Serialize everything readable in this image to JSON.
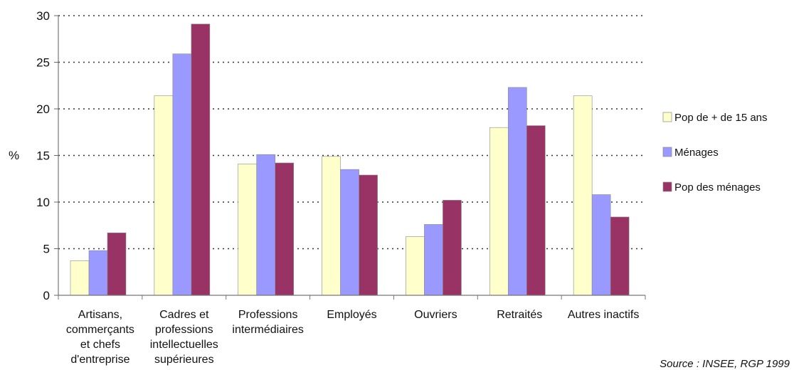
{
  "chart_data": {
    "type": "bar",
    "ylabel": "%",
    "ylim": [
      0,
      30
    ],
    "yticks": [
      0,
      5,
      10,
      15,
      20,
      25,
      30
    ],
    "grid": "horizontal dotted",
    "legend_position": "right",
    "categories": [
      [
        "Artisans,",
        "commerçants",
        "et chefs",
        "d'entreprise"
      ],
      [
        "Cadres et",
        "professions",
        "intellectuelles",
        "supérieures"
      ],
      [
        "Professions",
        "intermédiaires"
      ],
      [
        "Employés"
      ],
      [
        "Ouvriers"
      ],
      [
        "Retraités"
      ],
      [
        "Autres inactifs"
      ]
    ],
    "series": [
      {
        "name": "Pop de + de 15 ans",
        "color": "#ffffcc",
        "values": [
          3.7,
          21.4,
          14.1,
          14.9,
          6.3,
          18.0,
          21.4
        ]
      },
      {
        "name": "Ménages",
        "color": "#9999ff",
        "values": [
          4.8,
          25.9,
          15.1,
          13.5,
          7.6,
          22.3,
          10.8
        ]
      },
      {
        "name": "Pop des ménages",
        "color": "#993366",
        "values": [
          6.7,
          29.1,
          14.2,
          12.9,
          10.2,
          18.2,
          8.4
        ]
      }
    ],
    "source": "Source : INSEE, RGP 1999"
  }
}
